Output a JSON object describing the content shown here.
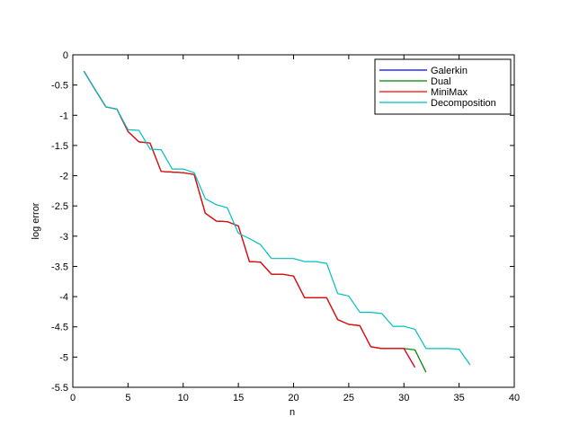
{
  "chart_data": {
    "type": "line",
    "title": "",
    "xlabel": "n",
    "ylabel": "log error",
    "xlim": [
      0,
      40
    ],
    "ylim": [
      -5.5,
      0
    ],
    "x_ticks": [
      0,
      5,
      10,
      15,
      20,
      25,
      30,
      35,
      40
    ],
    "y_ticks": [
      0,
      -0.5,
      -1,
      -1.5,
      -2,
      -2.5,
      -3,
      -3.5,
      -4,
      -4.5,
      -5,
      -5.5
    ],
    "x_tick_labels": [
      "0",
      "5",
      "10",
      "15",
      "20",
      "25",
      "30",
      "35",
      "40"
    ],
    "y_tick_labels": [
      "0",
      "-0.5",
      "-1",
      "-1.5",
      "-2",
      "-2.5",
      "-3",
      "-3.5",
      "-4",
      "-4.5",
      "-5",
      "-5.5"
    ],
    "grid": false,
    "legend_position": "top-right",
    "series": [
      {
        "name": "Galerkin",
        "color": "#0000ff",
        "x": [
          1,
          2,
          3,
          4,
          5,
          6,
          7,
          8,
          9,
          10,
          11,
          12,
          13,
          14,
          15,
          16,
          17,
          18,
          19,
          20,
          21,
          22,
          23,
          24,
          25,
          26,
          27,
          28,
          29,
          30,
          31
        ],
        "y": [
          -0.27,
          -0.57,
          -0.86,
          -0.9,
          -1.27,
          -1.44,
          -1.46,
          -1.93,
          -1.94,
          -1.95,
          -1.98,
          -2.62,
          -2.75,
          -2.76,
          -2.83,
          -3.42,
          -3.43,
          -3.63,
          -3.63,
          -3.66,
          -4.02,
          -4.02,
          -4.02,
          -4.38,
          -4.46,
          -4.48,
          -4.83,
          -4.86,
          -4.86,
          -4.86,
          -5.17
        ]
      },
      {
        "name": "Dual",
        "color": "#008000",
        "x": [
          1,
          2,
          3,
          4,
          5,
          6,
          7,
          8,
          9,
          10,
          11,
          12,
          13,
          14,
          15,
          16,
          17,
          18,
          19,
          20,
          21,
          22,
          23,
          24,
          25,
          26,
          27,
          28,
          29,
          30,
          31,
          32
        ],
        "y": [
          -0.27,
          -0.57,
          -0.86,
          -0.9,
          -1.27,
          -1.44,
          -1.46,
          -1.93,
          -1.94,
          -1.95,
          -1.98,
          -2.62,
          -2.75,
          -2.76,
          -2.83,
          -3.42,
          -3.43,
          -3.63,
          -3.63,
          -3.66,
          -4.02,
          -4.02,
          -4.02,
          -4.38,
          -4.46,
          -4.48,
          -4.83,
          -4.86,
          -4.86,
          -4.86,
          -4.88,
          -5.25
        ]
      },
      {
        "name": "MiniMax",
        "color": "#ff0000",
        "x": [
          1,
          2,
          3,
          4,
          5,
          6,
          7,
          8,
          9,
          10,
          11,
          12,
          13,
          14,
          15,
          16,
          17,
          18,
          19,
          20,
          21,
          22,
          23,
          24,
          25,
          26,
          27,
          28,
          29,
          30,
          31
        ],
        "y": [
          -0.27,
          -0.57,
          -0.86,
          -0.9,
          -1.27,
          -1.44,
          -1.46,
          -1.93,
          -1.94,
          -1.95,
          -1.98,
          -2.62,
          -2.75,
          -2.76,
          -2.83,
          -3.42,
          -3.43,
          -3.63,
          -3.63,
          -3.66,
          -4.02,
          -4.02,
          -4.02,
          -4.38,
          -4.46,
          -4.48,
          -4.83,
          -4.86,
          -4.86,
          -4.86,
          -5.17
        ]
      },
      {
        "name": "Decomposition",
        "color": "#00bfbf",
        "x": [
          1,
          2,
          3,
          4,
          5,
          6,
          7,
          8,
          9,
          10,
          11,
          12,
          13,
          14,
          15,
          16,
          17,
          18,
          19,
          20,
          21,
          22,
          23,
          24,
          25,
          26,
          27,
          28,
          29,
          30,
          31,
          32,
          33,
          34,
          35,
          36
        ],
        "y": [
          -0.27,
          -0.57,
          -0.86,
          -0.9,
          -1.24,
          -1.25,
          -1.56,
          -1.57,
          -1.89,
          -1.89,
          -1.95,
          -2.38,
          -2.48,
          -2.53,
          -2.95,
          -3.04,
          -3.14,
          -3.37,
          -3.37,
          -3.37,
          -3.42,
          -3.42,
          -3.45,
          -3.95,
          -3.99,
          -4.26,
          -4.26,
          -4.28,
          -4.49,
          -4.49,
          -4.54,
          -4.86,
          -4.86,
          -4.86,
          -4.87,
          -5.13
        ]
      }
    ]
  }
}
